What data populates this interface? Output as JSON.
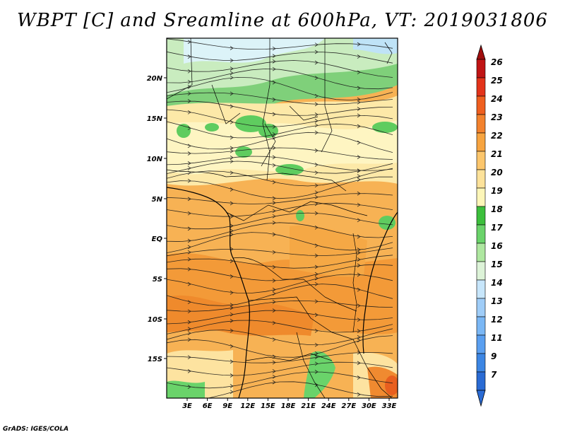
{
  "title": "WBPT [C] and Sreamline at 600hPa, VT: 2019031806",
  "footer": "GrADS: IGES/COLA",
  "map": {
    "lat_labels": [
      "20N",
      "15N",
      "10N",
      "5N",
      "EQ",
      "5S",
      "10S",
      "15S"
    ],
    "lon_labels": [
      "3E",
      "6E",
      "9E",
      "12E",
      "15E",
      "18E",
      "21E",
      "24E",
      "27E",
      "30E",
      "33E"
    ]
  },
  "colorbar": {
    "labels": [
      "7",
      "9",
      "11",
      "12",
      "13",
      "14",
      "15",
      "16",
      "17",
      "18",
      "19",
      "20",
      "21",
      "22",
      "23",
      "24",
      "25",
      "26"
    ],
    "colors": [
      "#2a6bd4",
      "#3c86e4",
      "#5a9ff0",
      "#7ab7f5",
      "#9fcdf8",
      "#c7e6fb",
      "#ddf3d8",
      "#aee7a0",
      "#6ad36a",
      "#3cbf3c",
      "#fdf6b8",
      "#fde29a",
      "#fcc66c",
      "#f7a440",
      "#f3822d",
      "#ef5f1f",
      "#e3331a",
      "#c01414"
    ],
    "tip_bottom_color": "#2a6bd4",
    "tip_top_color": "#a00e0e"
  }
}
